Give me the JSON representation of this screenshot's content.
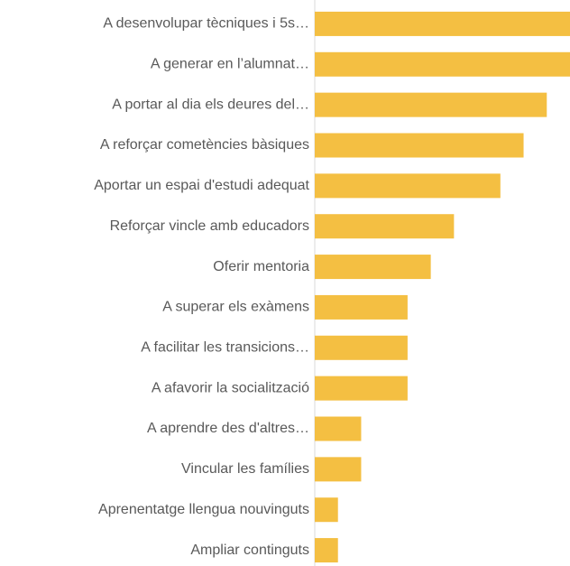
{
  "chart_data": {
    "type": "bar",
    "orientation": "horizontal",
    "categories": [
      "A desenvolupar tècniques i 5s…",
      "A generar en l’alumnat…",
      "A portar al dia els deures del…",
      "A reforçar cometències bàsiques",
      "Aportar un espai d'estudi adequat",
      "Reforçar vincle amb educadors",
      "Oferir mentoria",
      "A superar els exàmens",
      "A facilitar les transicions…",
      "A afavorir la socialització",
      "A aprendre des d'altres…",
      "Vincular les famílies",
      "Aprenentatge llengua nouvinguts",
      "Ampliar continguts"
    ],
    "values": [
      11,
      11,
      10,
      9,
      8,
      6,
      5,
      4,
      4,
      4,
      2,
      2,
      1,
      1
    ],
    "color": "#f4bf42",
    "xlim": [
      0,
      11
    ]
  }
}
